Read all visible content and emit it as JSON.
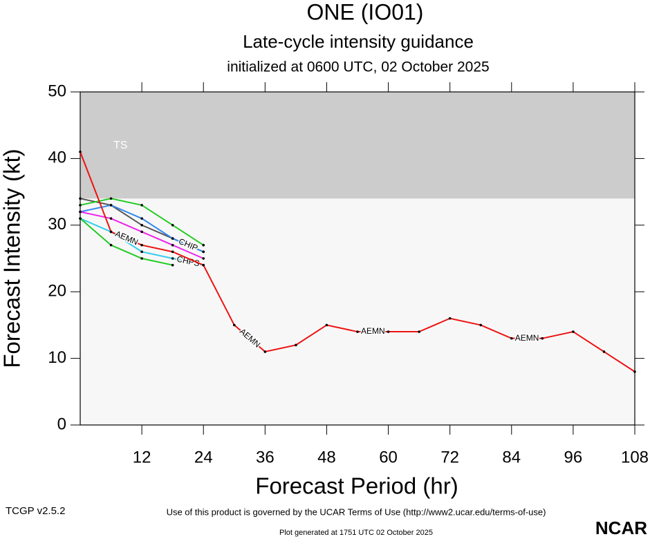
{
  "chart_data": {
    "type": "line",
    "title": "ONE (IO01)",
    "subtitle": "Late-cycle intensity guidance",
    "initialized": "initialized at 0600 UTC, 02 October 2025",
    "x_label": "Forecast Period (hr)",
    "y_label": "Forecast Intensity (kt)",
    "bands": [
      {
        "label": "TS",
        "from": 34,
        "to": 50,
        "color": "#cccccc"
      }
    ],
    "x": [
      0,
      6,
      12,
      18,
      24,
      30,
      36,
      42,
      48,
      54,
      60,
      66,
      72,
      78,
      84,
      90,
      96,
      102,
      108
    ],
    "series": [
      {
        "color": "#555555",
        "values": [
          34,
          33,
          30,
          28,
          26,
          null,
          null,
          null,
          null,
          null,
          null,
          null,
          null,
          null,
          null,
          null,
          null,
          null,
          null
        ]
      },
      {
        "color": "#22cc22",
        "values": [
          33,
          34,
          33,
          30,
          27,
          null,
          null,
          null,
          null,
          null,
          null,
          null,
          null,
          null,
          null,
          null,
          null,
          null,
          null
        ]
      },
      {
        "name": "CHIP",
        "color": "#3388ee",
        "values": [
          32,
          33,
          31,
          28,
          26,
          null,
          null,
          null,
          null,
          null,
          null,
          null,
          null,
          null,
          null,
          null,
          null,
          null,
          null
        ]
      },
      {
        "color": "#ee22ee",
        "values": [
          32,
          31,
          29,
          27,
          25,
          null,
          null,
          null,
          null,
          null,
          null,
          null,
          null,
          null,
          null,
          null,
          null,
          null,
          null
        ]
      },
      {
        "name": "CHPS",
        "color": "#33ccee",
        "values": [
          31,
          29,
          26,
          25,
          24,
          null,
          null,
          null,
          null,
          null,
          null,
          null,
          null,
          null,
          null,
          null,
          null,
          null,
          null
        ]
      },
      {
        "color": "#22cc22",
        "values": [
          31,
          27,
          25,
          24,
          null,
          null,
          null,
          null,
          null,
          null,
          null,
          null,
          null,
          null,
          null,
          null,
          null,
          null,
          null
        ]
      },
      {
        "name": "AEMN",
        "color": "#ee1111",
        "values": [
          41,
          29,
          27,
          26,
          24,
          15,
          11,
          12,
          15,
          14,
          14,
          14,
          16,
          15,
          13,
          13,
          14,
          11,
          8
        ]
      }
    ],
    "xlim": [
      0,
      108
    ],
    "ylim": [
      0,
      50
    ],
    "xticks": [
      12,
      24,
      36,
      48,
      60,
      72,
      84,
      96,
      108
    ],
    "yticks": [
      0,
      10,
      20,
      30,
      40,
      50
    ],
    "terms": "Use of this product is governed by the UCAR Terms of Use (http://www2.ucar.edu/terms-of-use)",
    "version": "TCGP v2.5.2",
    "generated": "Plot generated at 1751 UTC   02 October 2025",
    "logo": "NCAR"
  }
}
